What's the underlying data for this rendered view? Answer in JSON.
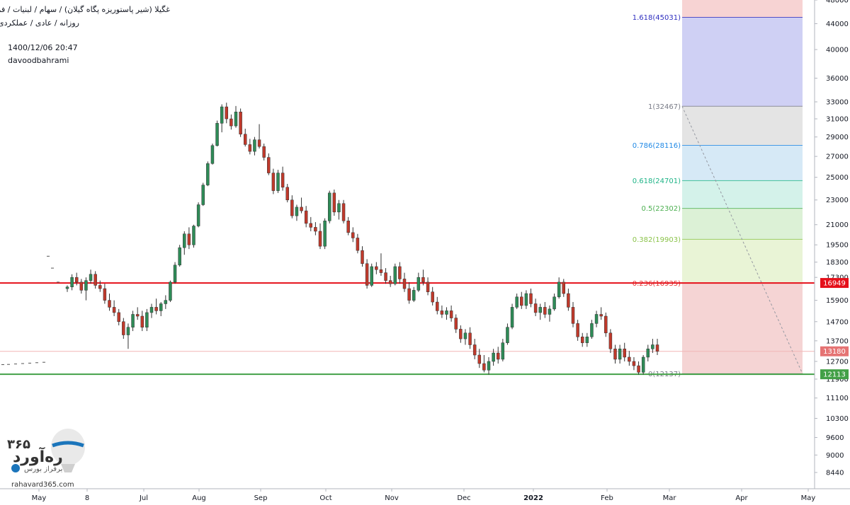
{
  "header": {
    "title": "غگیلا (شیر پاستوریزه پگاه گیلان) / سهام / لبنیات / فرابورس",
    "subtitle": "روزانه / عادی / عملکردی",
    "datetime": "1400/12/06 20:47",
    "author": "davoodbahrami"
  },
  "logo": {
    "name": "ره‌آورد",
    "number": "۳۶۵",
    "tagline": "برفراز بورس",
    "url": "rahavard365.com"
  },
  "colors": {
    "up": "#26a69a",
    "down": "#ef5350",
    "up_body": "#2e8b57",
    "down_body": "#c0392b",
    "resistance": "#e5101a",
    "support": "#43a047",
    "current": "#e57373"
  },
  "chart_data": {
    "type": "candlestick",
    "scale": "log",
    "ylim": [
      7950,
      48000
    ],
    "yticks": [
      8440,
      9000,
      9600,
      10300,
      11100,
      11900,
      12700,
      13700,
      14700,
      15900,
      17300,
      18300,
      19500,
      21000,
      23000,
      25000,
      27000,
      29000,
      31000,
      33000,
      36000,
      40000,
      44000,
      48000
    ],
    "xticks": [
      "May",
      "8",
      "Jul",
      "Aug",
      "Sep",
      "Oct",
      "Nov",
      "Dec",
      "2022",
      "Feb",
      "Mar",
      "Apr",
      "May"
    ],
    "price_labels": [
      {
        "value": 16949,
        "label": "16949",
        "color": "#e5101a"
      },
      {
        "value": 13180,
        "label": "13180",
        "color": "#e57373"
      },
      {
        "value": 12113,
        "label": "12113",
        "color": "#43a047"
      }
    ],
    "horizontal_lines": [
      {
        "value": 16949,
        "color": "#e5101a",
        "width": 2
      },
      {
        "value": 12113,
        "color": "#43a047",
        "width": 2
      },
      {
        "value": 13180,
        "color": "#f2b6b6",
        "width": 1
      }
    ],
    "fibonacci": [
      {
        "ratio": "1.618",
        "value": 45031,
        "label": "1.618(45031)",
        "color": "#2e2ebf"
      },
      {
        "ratio": "1",
        "value": 32467,
        "label": "1(32467)",
        "color": "#787b86"
      },
      {
        "ratio": "0.786",
        "value": 28116,
        "label": "0.786(28116)",
        "color": "#1e88e5"
      },
      {
        "ratio": "0.618",
        "value": 24701,
        "label": "0.618(24701)",
        "color": "#1db386"
      },
      {
        "ratio": "0.5",
        "value": 22302,
        "label": "0.5(22302)",
        "color": "#4caf50"
      },
      {
        "ratio": "0.382",
        "value": 19903,
        "label": "0.382(19903)",
        "color": "#8bc34a"
      },
      {
        "ratio": "0.236",
        "value": 16935,
        "label": "0.236(16935)",
        "color": "#e53935"
      },
      {
        "ratio": "0",
        "value": 12137,
        "label": "0(12137)",
        "color": "#787b86"
      }
    ],
    "candles": [
      {
        "o": 16600,
        "h": 16800,
        "l": 16400,
        "c": 16700
      },
      {
        "o": 16700,
        "h": 17500,
        "l": 16500,
        "c": 17300
      },
      {
        "o": 17300,
        "h": 17600,
        "l": 16800,
        "c": 17000
      },
      {
        "o": 17000,
        "h": 17200,
        "l": 16300,
        "c": 16500
      },
      {
        "o": 16500,
        "h": 17300,
        "l": 15900,
        "c": 17100
      },
      {
        "o": 17100,
        "h": 17800,
        "l": 16900,
        "c": 17500
      },
      {
        "o": 17500,
        "h": 17700,
        "l": 16600,
        "c": 16800
      },
      {
        "o": 16800,
        "h": 17100,
        "l": 16400,
        "c": 16600
      },
      {
        "o": 16600,
        "h": 16900,
        "l": 15700,
        "c": 15900
      },
      {
        "o": 15900,
        "h": 16300,
        "l": 15300,
        "c": 15500
      },
      {
        "o": 15500,
        "h": 15900,
        "l": 15000,
        "c": 15200
      },
      {
        "o": 15200,
        "h": 15400,
        "l": 14500,
        "c": 14700
      },
      {
        "o": 14700,
        "h": 14900,
        "l": 13800,
        "c": 14000
      },
      {
        "o": 14000,
        "h": 14600,
        "l": 13300,
        "c": 14400
      },
      {
        "o": 14400,
        "h": 15300,
        "l": 14200,
        "c": 15100
      },
      {
        "o": 15100,
        "h": 15500,
        "l": 14800,
        "c": 15000
      },
      {
        "o": 15000,
        "h": 15300,
        "l": 14200,
        "c": 14400
      },
      {
        "o": 14400,
        "h": 15400,
        "l": 14200,
        "c": 15200
      },
      {
        "o": 15200,
        "h": 15700,
        "l": 14900,
        "c": 15500
      },
      {
        "o": 15500,
        "h": 16000,
        "l": 15100,
        "c": 15300
      },
      {
        "o": 15300,
        "h": 15800,
        "l": 15000,
        "c": 15700
      },
      {
        "o": 15700,
        "h": 16200,
        "l": 15400,
        "c": 15900
      },
      {
        "o": 15900,
        "h": 17100,
        "l": 15800,
        "c": 17000
      },
      {
        "o": 17000,
        "h": 18300,
        "l": 16900,
        "c": 18100
      },
      {
        "o": 18100,
        "h": 19500,
        "l": 18000,
        "c": 19300
      },
      {
        "o": 19300,
        "h": 20500,
        "l": 18800,
        "c": 20300
      },
      {
        "o": 20300,
        "h": 20800,
        "l": 19200,
        "c": 19500
      },
      {
        "o": 19500,
        "h": 21000,
        "l": 19300,
        "c": 20900
      },
      {
        "o": 20900,
        "h": 22800,
        "l": 20800,
        "c": 22600
      },
      {
        "o": 22600,
        "h": 24500,
        "l": 22500,
        "c": 24300
      },
      {
        "o": 24300,
        "h": 26500,
        "l": 24200,
        "c": 26300
      },
      {
        "o": 26300,
        "h": 28300,
        "l": 26200,
        "c": 28100
      },
      {
        "o": 28100,
        "h": 30800,
        "l": 28000,
        "c": 30500
      },
      {
        "o": 30500,
        "h": 32700,
        "l": 29500,
        "c": 32400
      },
      {
        "o": 32400,
        "h": 32900,
        "l": 30500,
        "c": 31000
      },
      {
        "o": 31000,
        "h": 31500,
        "l": 29800,
        "c": 30200
      },
      {
        "o": 30200,
        "h": 32500,
        "l": 30000,
        "c": 31800
      },
      {
        "o": 31800,
        "h": 32200,
        "l": 29000,
        "c": 29300
      },
      {
        "o": 29300,
        "h": 29900,
        "l": 28000,
        "c": 28200
      },
      {
        "o": 28200,
        "h": 28800,
        "l": 27200,
        "c": 27500
      },
      {
        "o": 27500,
        "h": 29000,
        "l": 27100,
        "c": 28700
      },
      {
        "o": 28700,
        "h": 30400,
        "l": 27800,
        "c": 28000
      },
      {
        "o": 28000,
        "h": 28300,
        "l": 26600,
        "c": 26900
      },
      {
        "o": 26900,
        "h": 27300,
        "l": 25200,
        "c": 25400
      },
      {
        "o": 25400,
        "h": 25800,
        "l": 23500,
        "c": 23800
      },
      {
        "o": 23800,
        "h": 25700,
        "l": 23600,
        "c": 25400
      },
      {
        "o": 25400,
        "h": 26000,
        "l": 23800,
        "c": 24100
      },
      {
        "o": 24100,
        "h": 24400,
        "l": 22800,
        "c": 23000
      },
      {
        "o": 23000,
        "h": 23400,
        "l": 21500,
        "c": 21700
      },
      {
        "o": 21700,
        "h": 22600,
        "l": 21300,
        "c": 22400
      },
      {
        "o": 22400,
        "h": 23200,
        "l": 21900,
        "c": 22100
      },
      {
        "o": 22100,
        "h": 22500,
        "l": 20800,
        "c": 21100
      },
      {
        "o": 21100,
        "h": 21600,
        "l": 20500,
        "c": 20800
      },
      {
        "o": 20800,
        "h": 21200,
        "l": 20200,
        "c": 20500
      },
      {
        "o": 20500,
        "h": 21100,
        "l": 19200,
        "c": 19400
      },
      {
        "o": 19400,
        "h": 21500,
        "l": 19200,
        "c": 21300
      },
      {
        "o": 21300,
        "h": 23800,
        "l": 21100,
        "c": 23600
      },
      {
        "o": 23600,
        "h": 23900,
        "l": 21700,
        "c": 22000
      },
      {
        "o": 22000,
        "h": 23000,
        "l": 21400,
        "c": 22700
      },
      {
        "o": 22700,
        "h": 23000,
        "l": 21100,
        "c": 21300
      },
      {
        "o": 21300,
        "h": 21600,
        "l": 20200,
        "c": 20400
      },
      {
        "o": 20400,
        "h": 20800,
        "l": 19700,
        "c": 20000
      },
      {
        "o": 20000,
        "h": 20300,
        "l": 18900,
        "c": 19100
      },
      {
        "o": 19100,
        "h": 19400,
        "l": 18000,
        "c": 18200
      },
      {
        "o": 18200,
        "h": 18500,
        "l": 16600,
        "c": 16800
      },
      {
        "o": 16800,
        "h": 18200,
        "l": 16700,
        "c": 18000
      },
      {
        "o": 18000,
        "h": 18300,
        "l": 17500,
        "c": 17800
      },
      {
        "o": 17800,
        "h": 18900,
        "l": 17400,
        "c": 17600
      },
      {
        "o": 17600,
        "h": 17900,
        "l": 16900,
        "c": 17100
      },
      {
        "o": 17100,
        "h": 17400,
        "l": 16700,
        "c": 16900
      },
      {
        "o": 16900,
        "h": 18200,
        "l": 16800,
        "c": 18000
      },
      {
        "o": 18000,
        "h": 18300,
        "l": 16900,
        "c": 17200
      },
      {
        "o": 17200,
        "h": 17600,
        "l": 16400,
        "c": 16600
      },
      {
        "o": 16600,
        "h": 17000,
        "l": 15700,
        "c": 15900
      },
      {
        "o": 15900,
        "h": 16700,
        "l": 15800,
        "c": 16500
      },
      {
        "o": 16500,
        "h": 17600,
        "l": 16400,
        "c": 17300
      },
      {
        "o": 17300,
        "h": 17800,
        "l": 16800,
        "c": 17000
      },
      {
        "o": 17000,
        "h": 17300,
        "l": 16200,
        "c": 16400
      },
      {
        "o": 16400,
        "h": 16700,
        "l": 15600,
        "c": 15800
      },
      {
        "o": 15800,
        "h": 16100,
        "l": 15100,
        "c": 15300
      },
      {
        "o": 15300,
        "h": 15600,
        "l": 14900,
        "c": 15100
      },
      {
        "o": 15100,
        "h": 15500,
        "l": 14800,
        "c": 15300
      },
      {
        "o": 15300,
        "h": 15600,
        "l": 14700,
        "c": 14900
      },
      {
        "o": 14900,
        "h": 15100,
        "l": 14100,
        "c": 14300
      },
      {
        "o": 14300,
        "h": 14500,
        "l": 13600,
        "c": 13800
      },
      {
        "o": 13800,
        "h": 14300,
        "l": 13500,
        "c": 14100
      },
      {
        "o": 14100,
        "h": 14400,
        "l": 13300,
        "c": 13500
      },
      {
        "o": 13500,
        "h": 13800,
        "l": 12800,
        "c": 13000
      },
      {
        "o": 13000,
        "h": 13300,
        "l": 12400,
        "c": 12600
      },
      {
        "o": 12600,
        "h": 13000,
        "l": 12200,
        "c": 12300
      },
      {
        "o": 12300,
        "h": 12900,
        "l": 12100,
        "c": 12700
      },
      {
        "o": 12700,
        "h": 13300,
        "l": 12500,
        "c": 13100
      },
      {
        "o": 13100,
        "h": 13400,
        "l": 12600,
        "c": 12800
      },
      {
        "o": 12800,
        "h": 13800,
        "l": 12700,
        "c": 13600
      },
      {
        "o": 13600,
        "h": 14600,
        "l": 13500,
        "c": 14400
      },
      {
        "o": 14400,
        "h": 15700,
        "l": 14300,
        "c": 15500
      },
      {
        "o": 15500,
        "h": 16300,
        "l": 15400,
        "c": 16100
      },
      {
        "o": 16100,
        "h": 16400,
        "l": 15400,
        "c": 15600
      },
      {
        "o": 15600,
        "h": 16500,
        "l": 15400,
        "c": 16300
      },
      {
        "o": 16300,
        "h": 16600,
        "l": 15500,
        "c": 15700
      },
      {
        "o": 15700,
        "h": 16000,
        "l": 15000,
        "c": 15200
      },
      {
        "o": 15200,
        "h": 15700,
        "l": 14800,
        "c": 15500
      },
      {
        "o": 15500,
        "h": 15800,
        "l": 14900,
        "c": 15100
      },
      {
        "o": 15100,
        "h": 15600,
        "l": 14700,
        "c": 15400
      },
      {
        "o": 15400,
        "h": 16300,
        "l": 15300,
        "c": 16100
      },
      {
        "o": 16100,
        "h": 17300,
        "l": 16000,
        "c": 17000
      },
      {
        "o": 17000,
        "h": 17200,
        "l": 16100,
        "c": 16300
      },
      {
        "o": 16300,
        "h": 16600,
        "l": 15300,
        "c": 15500
      },
      {
        "o": 15500,
        "h": 15800,
        "l": 14400,
        "c": 14600
      },
      {
        "o": 14600,
        "h": 14800,
        "l": 13700,
        "c": 13900
      },
      {
        "o": 13900,
        "h": 14100,
        "l": 13400,
        "c": 13600
      },
      {
        "o": 13600,
        "h": 14100,
        "l": 13400,
        "c": 13900
      },
      {
        "o": 13900,
        "h": 14800,
        "l": 13800,
        "c": 14600
      },
      {
        "o": 14600,
        "h": 15300,
        "l": 14400,
        "c": 15100
      },
      {
        "o": 15100,
        "h": 15500,
        "l": 14800,
        "c": 15000
      },
      {
        "o": 15000,
        "h": 15200,
        "l": 13900,
        "c": 14100
      },
      {
        "o": 14100,
        "h": 14300,
        "l": 13100,
        "c": 13300
      },
      {
        "o": 13300,
        "h": 13500,
        "l": 12600,
        "c": 12800
      },
      {
        "o": 12800,
        "h": 13500,
        "l": 12600,
        "c": 13300
      },
      {
        "o": 13300,
        "h": 13600,
        "l": 12700,
        "c": 12900
      },
      {
        "o": 12900,
        "h": 13200,
        "l": 12500,
        "c": 12700
      },
      {
        "o": 12700,
        "h": 12900,
        "l": 12300,
        "c": 12500
      },
      {
        "o": 12500,
        "h": 12700,
        "l": 12100,
        "c": 12200
      },
      {
        "o": 12200,
        "h": 13000,
        "l": 12100,
        "c": 12900
      },
      {
        "o": 12900,
        "h": 13500,
        "l": 12700,
        "c": 13300
      },
      {
        "o": 13300,
        "h": 13800,
        "l": 13100,
        "c": 13500
      },
      {
        "o": 13500,
        "h": 13800,
        "l": 13000,
        "c": 13180
      }
    ]
  }
}
